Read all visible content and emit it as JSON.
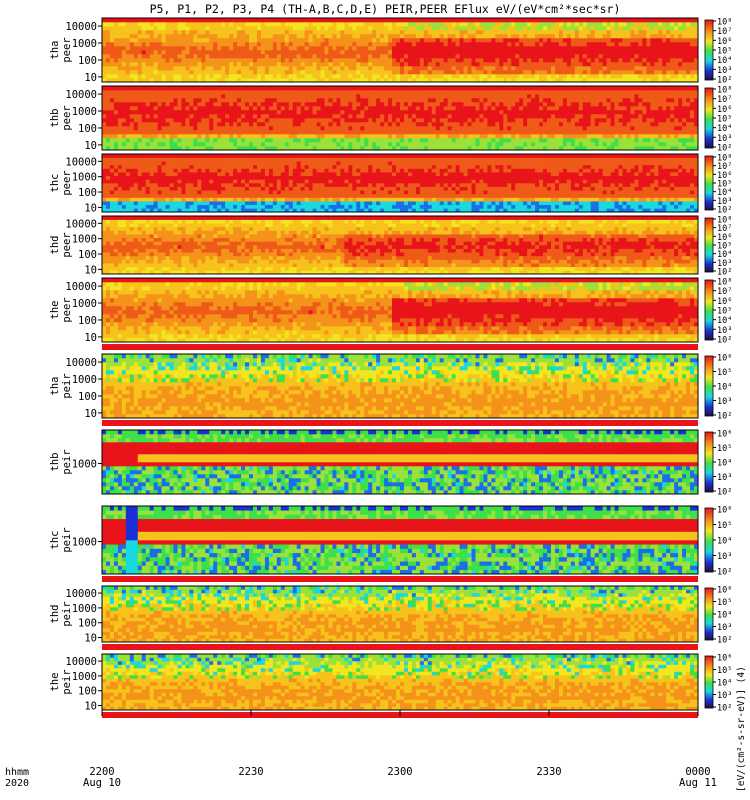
{
  "title": "P5, P1, P2, P3, P4 (TH-A,B,C,D,E) PEIR,PEER EFlux eV/(eV*cm²*sec*sr)",
  "time_axis": {
    "row1_label": "hhmm",
    "row2_label": "2020",
    "ticks": [
      {
        "hhmm": "2200",
        "date": "Aug 10",
        "frac": 0.0
      },
      {
        "hhmm": "2230",
        "date": "",
        "frac": 0.25
      },
      {
        "hhmm": "2300",
        "date": "",
        "frac": 0.5
      },
      {
        "hhmm": "2330",
        "date": "",
        "frac": 0.75
      },
      {
        "hhmm": "0000",
        "date": "Aug 11",
        "frac": 1.0
      }
    ]
  },
  "colorbar_unit_label": "[eV/(cm²-s-sr-eV)] (4)",
  "colors": {
    "red": "#e8141a",
    "orange": "#f5921a",
    "yellow": "#f2e61e",
    "green": "#3ee04a",
    "cyan": "#19d8e0",
    "blue": "#1b2ed8",
    "dark": "#231a5a",
    "axis": "#000000"
  },
  "chart_data": [
    {
      "type": "heatmap",
      "probe": "tha",
      "instrument": "peer",
      "ylabel": "tha\npeer",
      "yscale": "log",
      "ylim": [
        5,
        30000
      ],
      "yticks": [
        "10",
        "100",
        "1000",
        "10000"
      ],
      "cbar_ticks": [
        "10²",
        "10³",
        "10⁴",
        "10⁵",
        "10⁶",
        "10⁷",
        "10⁸"
      ]
    },
    {
      "type": "heatmap",
      "probe": "thb",
      "instrument": "peer",
      "ylabel": "thb\npeer",
      "yscale": "log",
      "ylim": [
        5,
        30000
      ],
      "yticks": [
        "10",
        "100",
        "1000",
        "10000"
      ],
      "cbar_ticks": [
        "10²",
        "10³",
        "10⁴",
        "10⁵",
        "10⁶",
        "10⁷",
        "10⁸"
      ]
    },
    {
      "type": "heatmap",
      "probe": "thc",
      "instrument": "peer",
      "ylabel": "thc\npeer",
      "yscale": "log",
      "ylim": [
        5,
        30000
      ],
      "yticks": [
        "10",
        "100",
        "1000",
        "10000"
      ],
      "cbar_ticks": [
        "10²",
        "10³",
        "10⁴",
        "10⁵",
        "10⁶",
        "10⁷",
        "10⁸"
      ]
    },
    {
      "type": "heatmap",
      "probe": "thd",
      "instrument": "peer",
      "ylabel": "thd\npeer",
      "yscale": "log",
      "ylim": [
        5,
        30000
      ],
      "yticks": [
        "10",
        "100",
        "1000",
        "10000"
      ],
      "cbar_ticks": [
        "10²",
        "10³",
        "10⁴",
        "10⁵",
        "10⁶",
        "10⁷",
        "10⁸"
      ]
    },
    {
      "type": "heatmap",
      "probe": "the",
      "instrument": "peer",
      "ylabel": "the\npeer",
      "yscale": "log",
      "ylim": [
        5,
        30000
      ],
      "yticks": [
        "10",
        "100",
        "1000",
        "10000"
      ],
      "cbar_ticks": [
        "10²",
        "10³",
        "10⁴",
        "10⁵",
        "10⁶",
        "10⁷",
        "10⁸"
      ]
    },
    {
      "type": "heatmap",
      "probe": "tha",
      "instrument": "peir",
      "ylabel": "tha\npeir",
      "yscale": "log",
      "ylim": [
        5,
        30000
      ],
      "yticks": [
        "10",
        "100",
        "1000",
        "10000"
      ],
      "cbar_ticks": [
        "10²",
        "10³",
        "10⁴",
        "10⁵",
        "10⁶"
      ]
    },
    {
      "type": "heatmap",
      "probe": "thb",
      "instrument": "peir",
      "ylabel": "thb\npeir",
      "yscale": "log",
      "ylim": [
        150,
        8000
      ],
      "yticks": [
        "1000"
      ],
      "cbar_ticks": [
        "10²",
        "10³",
        "10⁴",
        "10⁵",
        "10⁶"
      ]
    },
    {
      "type": "heatmap",
      "probe": "thc",
      "instrument": "peir",
      "ylabel": "thc\npeir",
      "yscale": "log",
      "ylim": [
        150,
        8000
      ],
      "yticks": [
        "1000"
      ],
      "cbar_ticks": [
        "10²",
        "10³",
        "10⁴",
        "10⁵",
        "10⁶"
      ]
    },
    {
      "type": "heatmap",
      "probe": "thd",
      "instrument": "peir",
      "ylabel": "thd\npeir",
      "yscale": "log",
      "ylim": [
        5,
        30000
      ],
      "yticks": [
        "10",
        "100",
        "1000",
        "10000"
      ],
      "cbar_ticks": [
        "10²",
        "10³",
        "10⁴",
        "10⁵",
        "10⁶"
      ]
    },
    {
      "type": "heatmap",
      "probe": "the",
      "instrument": "peir",
      "ylabel": "the\npeir",
      "yscale": "log",
      "ylim": [
        5,
        30000
      ],
      "yticks": [
        "10",
        "100",
        "1000",
        "10000"
      ],
      "cbar_ticks": [
        "10²",
        "10³",
        "10⁴",
        "10⁵",
        "10⁶"
      ]
    }
  ]
}
